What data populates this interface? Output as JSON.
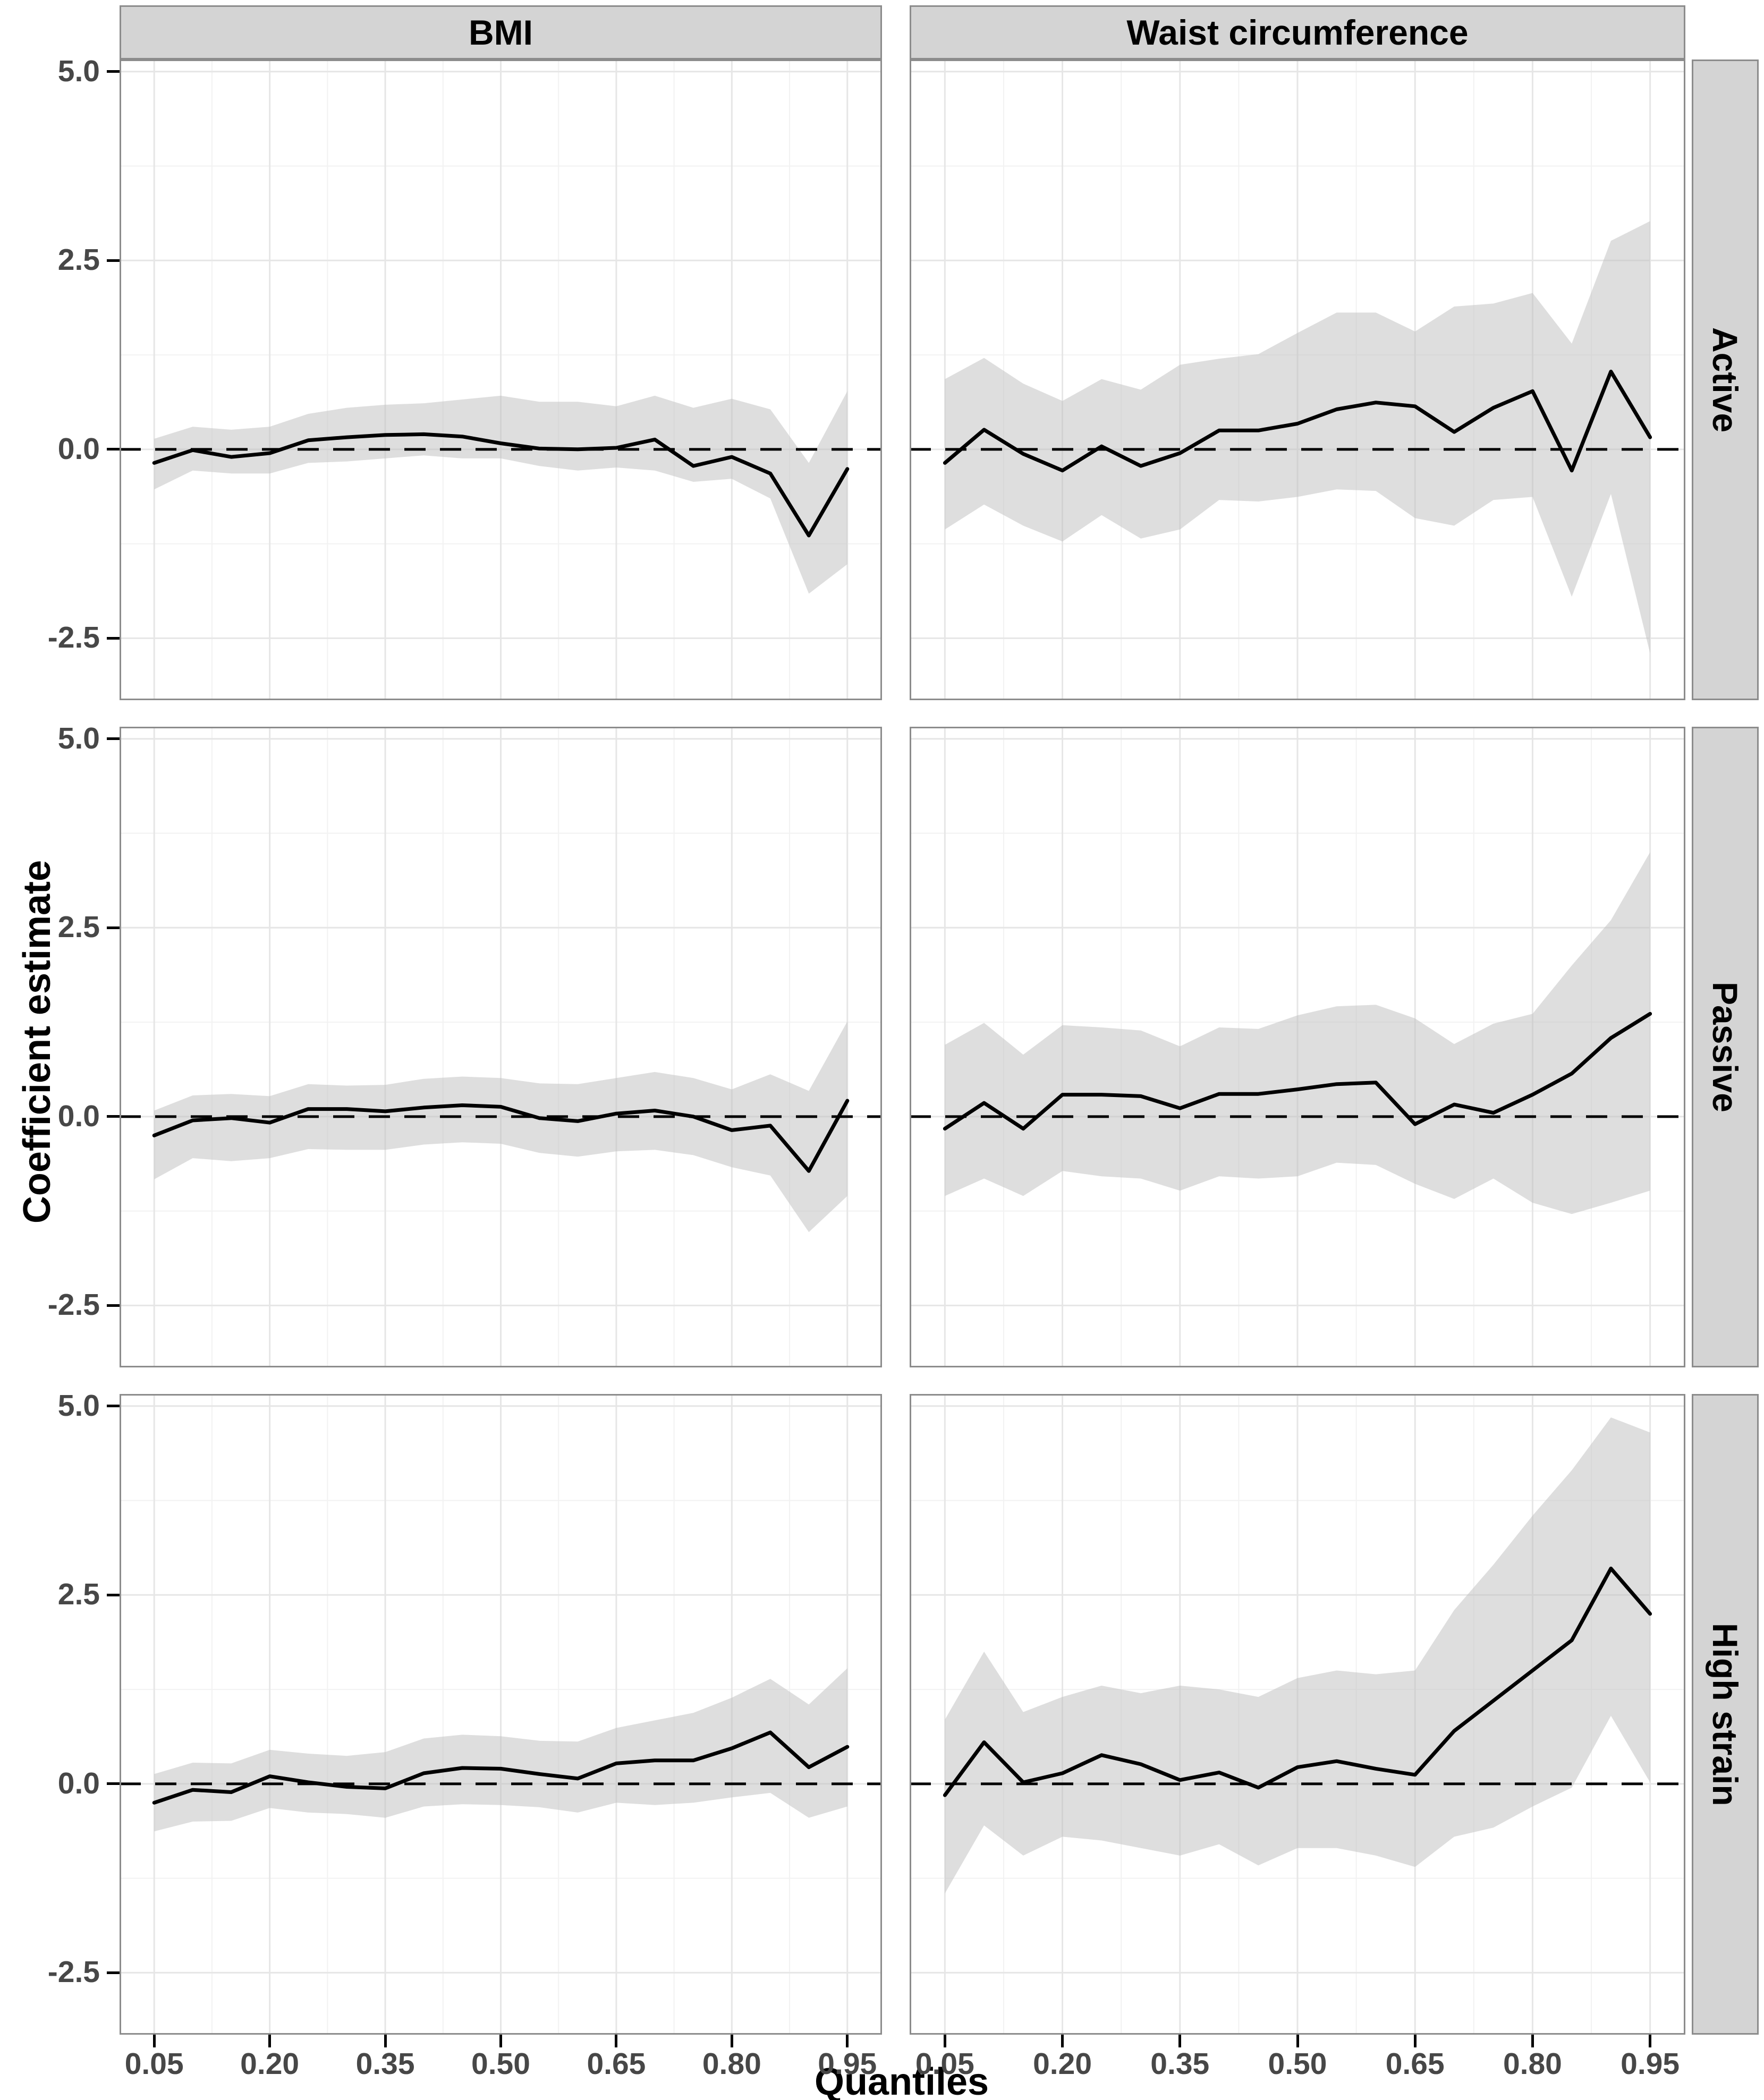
{
  "chart_data": {
    "type": "line",
    "title": "",
    "xlabel": "Quantiles",
    "ylabel": "Coefficient estimate",
    "facet_columns": [
      "BMI",
      "Waist circumference"
    ],
    "facet_rows": [
      "Active",
      "Passive",
      "High strain"
    ],
    "x_ticks": [
      0.05,
      0.2,
      0.35,
      0.5,
      0.65,
      0.8,
      0.95
    ],
    "x_tick_labels": [
      "0.05",
      "0.20",
      "0.35",
      "0.50",
      "0.65",
      "0.80",
      "0.95"
    ],
    "x_minor_ticks": [
      0.125,
      0.275,
      0.425,
      0.575,
      0.725,
      0.875
    ],
    "y_ticks": [
      5.0,
      2.5,
      0.0,
      -2.5
    ],
    "y_tick_labels": [
      "5.0",
      "2.5",
      "0.0",
      "-2.5"
    ],
    "y_minor_ticks": [
      3.75,
      1.25,
      -1.25
    ],
    "xlim": [
      0.005,
      0.995
    ],
    "ylim": [
      -3.32,
      5.16
    ],
    "reference_line_y": 0,
    "grid": true,
    "legend": "none",
    "x": [
      0.05,
      0.1,
      0.15,
      0.2,
      0.25,
      0.3,
      0.35,
      0.4,
      0.45,
      0.5,
      0.55,
      0.6,
      0.65,
      0.7,
      0.75,
      0.8,
      0.85,
      0.9,
      0.95
    ],
    "panels": [
      {
        "col": "BMI",
        "row": "Active",
        "line": [
          -0.18,
          -0.01,
          -0.1,
          -0.05,
          0.12,
          0.16,
          0.19,
          0.2,
          0.17,
          0.08,
          0.01,
          0.0,
          0.02,
          0.13,
          -0.22,
          -0.1,
          -0.32,
          -1.14,
          -0.26
        ],
        "upper": [
          0.14,
          0.3,
          0.26,
          0.3,
          0.47,
          0.55,
          0.59,
          0.61,
          0.66,
          0.71,
          0.63,
          0.63,
          0.57,
          0.71,
          0.55,
          0.67,
          0.53,
          -0.18,
          0.77
        ],
        "lower": [
          -0.53,
          -0.28,
          -0.32,
          -0.32,
          -0.18,
          -0.16,
          -0.12,
          -0.08,
          -0.12,
          -0.12,
          -0.22,
          -0.28,
          -0.24,
          -0.28,
          -0.43,
          -0.39,
          -0.65,
          -1.91,
          -1.52
        ]
      },
      {
        "col": "Waist circumference",
        "row": "Active",
        "line": [
          -0.18,
          0.26,
          -0.06,
          -0.28,
          0.04,
          -0.22,
          -0.05,
          0.25,
          0.25,
          0.34,
          0.53,
          0.62,
          0.57,
          0.23,
          0.55,
          0.77,
          -0.28,
          1.03,
          0.16
        ],
        "upper": [
          0.93,
          1.21,
          0.87,
          0.64,
          0.93,
          0.79,
          1.12,
          1.2,
          1.26,
          1.54,
          1.81,
          1.81,
          1.56,
          1.89,
          1.93,
          2.07,
          1.4,
          2.76,
          3.02
        ],
        "lower": [
          -1.06,
          -0.73,
          -1.01,
          -1.22,
          -0.87,
          -1.18,
          -1.06,
          -0.67,
          -0.69,
          -0.63,
          -0.53,
          -0.55,
          -0.91,
          -1.01,
          -0.67,
          -0.63,
          -1.95,
          -0.59,
          -2.7
        ]
      },
      {
        "col": "BMI",
        "row": "Passive",
        "line": [
          -0.25,
          -0.05,
          -0.02,
          -0.08,
          0.1,
          0.1,
          0.07,
          0.12,
          0.15,
          0.13,
          -0.02,
          -0.06,
          0.04,
          0.08,
          0.0,
          -0.18,
          -0.12,
          -0.72,
          0.21
        ],
        "upper": [
          0.08,
          0.28,
          0.3,
          0.27,
          0.43,
          0.41,
          0.42,
          0.5,
          0.53,
          0.51,
          0.44,
          0.43,
          0.51,
          0.59,
          0.51,
          0.36,
          0.56,
          0.34,
          1.26
        ],
        "lower": [
          -0.83,
          -0.55,
          -0.59,
          -0.55,
          -0.43,
          -0.44,
          -0.44,
          -0.37,
          -0.34,
          -0.36,
          -0.48,
          -0.53,
          -0.46,
          -0.44,
          -0.51,
          -0.67,
          -0.78,
          -1.53,
          -1.05
        ]
      },
      {
        "col": "Waist circumference",
        "row": "Passive",
        "line": [
          -0.16,
          0.18,
          -0.16,
          0.29,
          0.29,
          0.27,
          0.11,
          0.3,
          0.3,
          0.36,
          0.43,
          0.45,
          -0.1,
          0.16,
          0.05,
          0.29,
          0.57,
          1.04,
          1.36
        ],
        "upper": [
          0.95,
          1.24,
          0.82,
          1.21,
          1.18,
          1.14,
          0.93,
          1.18,
          1.16,
          1.34,
          1.46,
          1.48,
          1.3,
          0.96,
          1.23,
          1.36,
          2.0,
          2.6,
          3.5
        ],
        "lower": [
          -1.05,
          -0.82,
          -1.05,
          -0.72,
          -0.79,
          -0.82,
          -0.98,
          -0.79,
          -0.82,
          -0.79,
          -0.61,
          -0.64,
          -0.89,
          -1.09,
          -0.82,
          -1.14,
          -1.29,
          -1.14,
          -0.98
        ]
      },
      {
        "col": "BMI",
        "row": "High strain",
        "line": [
          -0.25,
          -0.08,
          -0.11,
          0.1,
          0.02,
          -0.04,
          -0.06,
          0.14,
          0.21,
          0.2,
          0.13,
          0.07,
          0.27,
          0.31,
          0.31,
          0.47,
          0.68,
          0.22,
          0.49
        ],
        "upper": [
          0.13,
          0.28,
          0.27,
          0.45,
          0.4,
          0.37,
          0.42,
          0.6,
          0.65,
          0.63,
          0.57,
          0.56,
          0.74,
          0.84,
          0.94,
          1.14,
          1.39,
          1.05,
          1.53
        ],
        "lower": [
          -0.63,
          -0.5,
          -0.49,
          -0.32,
          -0.38,
          -0.4,
          -0.45,
          -0.3,
          -0.27,
          -0.28,
          -0.31,
          -0.38,
          -0.25,
          -0.28,
          -0.25,
          -0.18,
          -0.12,
          -0.45,
          -0.3
        ]
      },
      {
        "col": "Waist circumference",
        "row": "High strain",
        "line": [
          -0.15,
          0.55,
          0.02,
          0.14,
          0.38,
          0.26,
          0.05,
          0.15,
          -0.05,
          0.22,
          0.3,
          0.2,
          0.12,
          0.7,
          1.1,
          1.5,
          1.9,
          2.85,
          2.25
        ],
        "upper": [
          0.85,
          1.75,
          0.95,
          1.15,
          1.3,
          1.2,
          1.3,
          1.25,
          1.15,
          1.4,
          1.5,
          1.45,
          1.5,
          2.3,
          2.9,
          3.55,
          4.15,
          4.85,
          4.65
        ],
        "lower": [
          -1.45,
          -0.55,
          -0.95,
          -0.7,
          -0.75,
          -0.85,
          -0.95,
          -0.8,
          -1.08,
          -0.85,
          -0.85,
          -0.95,
          -1.1,
          -0.7,
          -0.58,
          -0.3,
          -0.05,
          0.9,
          0.02
        ]
      }
    ],
    "style": {
      "line_color": "#000000",
      "ribbon_color": "#bebebe",
      "ribbon_opacity": 0.5,
      "reference_line_style": "dashed",
      "strip_fill": "#d4d4d4",
      "panel_border_color": "#8c8c8c",
      "major_grid_color": "#e6e6e6",
      "minor_grid_color": "#f2f2f2",
      "tick_label_color": "#474747"
    }
  }
}
